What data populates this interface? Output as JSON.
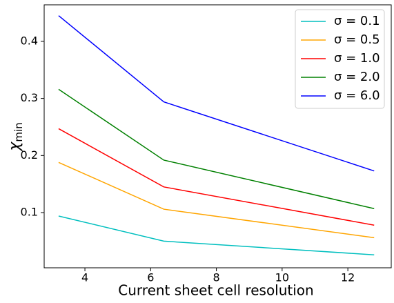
{
  "chart_data": {
    "type": "line",
    "xlabel": "Current sheet cell resolution",
    "ylabel": "χ",
    "ylabel_subscript": "min",
    "x": [
      3.2,
      6.4,
      12.8
    ],
    "series": [
      {
        "name": "σ = 0.1",
        "color": "#00bfbf",
        "values": [
          0.094,
          0.05,
          0.026
        ]
      },
      {
        "name": "σ = 0.5",
        "color": "#ffa500",
        "values": [
          0.188,
          0.106,
          0.056
        ]
      },
      {
        "name": "σ = 1.0",
        "color": "#ff0000",
        "values": [
          0.247,
          0.145,
          0.078
        ]
      },
      {
        "name": "σ = 2.0",
        "color": "#008000",
        "values": [
          0.316,
          0.192,
          0.107
        ]
      },
      {
        "name": "σ = 6.0",
        "color": "#0000ff",
        "values": [
          0.445,
          0.294,
          0.173
        ]
      }
    ],
    "xlim": [
      2.76,
      13.32
    ],
    "xticks": [
      4,
      6,
      8,
      10,
      12
    ],
    "ylim": [
      0.0033,
      0.464
    ],
    "yticks": [
      0.1,
      0.2,
      0.3,
      0.4
    ],
    "legend": "upper-right"
  }
}
